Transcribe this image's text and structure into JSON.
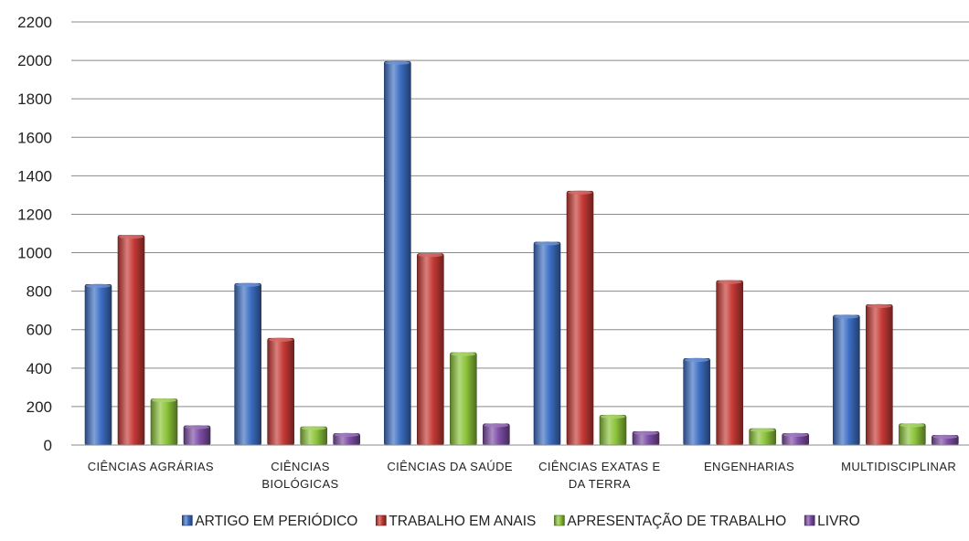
{
  "chart_data": {
    "type": "bar",
    "title": "",
    "xlabel": "",
    "ylabel": "",
    "ylim": [
      0,
      2200
    ],
    "yticks": [
      0,
      200,
      400,
      600,
      800,
      1000,
      1200,
      1400,
      1600,
      1800,
      2000,
      2200
    ],
    "grid": true,
    "legend_position": "bottom",
    "categories": [
      [
        "CIÊNCIAS AGRÁRIAS"
      ],
      [
        "CIÊNCIAS",
        "BIOLÓGICAS"
      ],
      [
        "CIÊNCIAS DA SAÚDE"
      ],
      [
        "CIÊNCIAS EXATAS E",
        "DA TERRA"
      ],
      [
        "ENGENHARIAS"
      ],
      [
        "MULTIDISCIPLINAR"
      ]
    ],
    "series": [
      {
        "name": "ARTIGO EM PERIÓDICO",
        "color": "#3d6fc4",
        "values": [
          835,
          840,
          1995,
          1055,
          450,
          675
        ]
      },
      {
        "name": "TRABALHO EM ANAIS",
        "color": "#c63a36",
        "values": [
          1090,
          555,
          995,
          1320,
          855,
          730
        ]
      },
      {
        "name": "APRESENTAÇÃO DE TRABALHO",
        "color": "#8cc43a",
        "values": [
          240,
          95,
          480,
          155,
          85,
          110
        ]
      },
      {
        "name": "LIVRO",
        "color": "#7e4ea6",
        "values": [
          100,
          60,
          110,
          70,
          60,
          50
        ]
      }
    ]
  }
}
